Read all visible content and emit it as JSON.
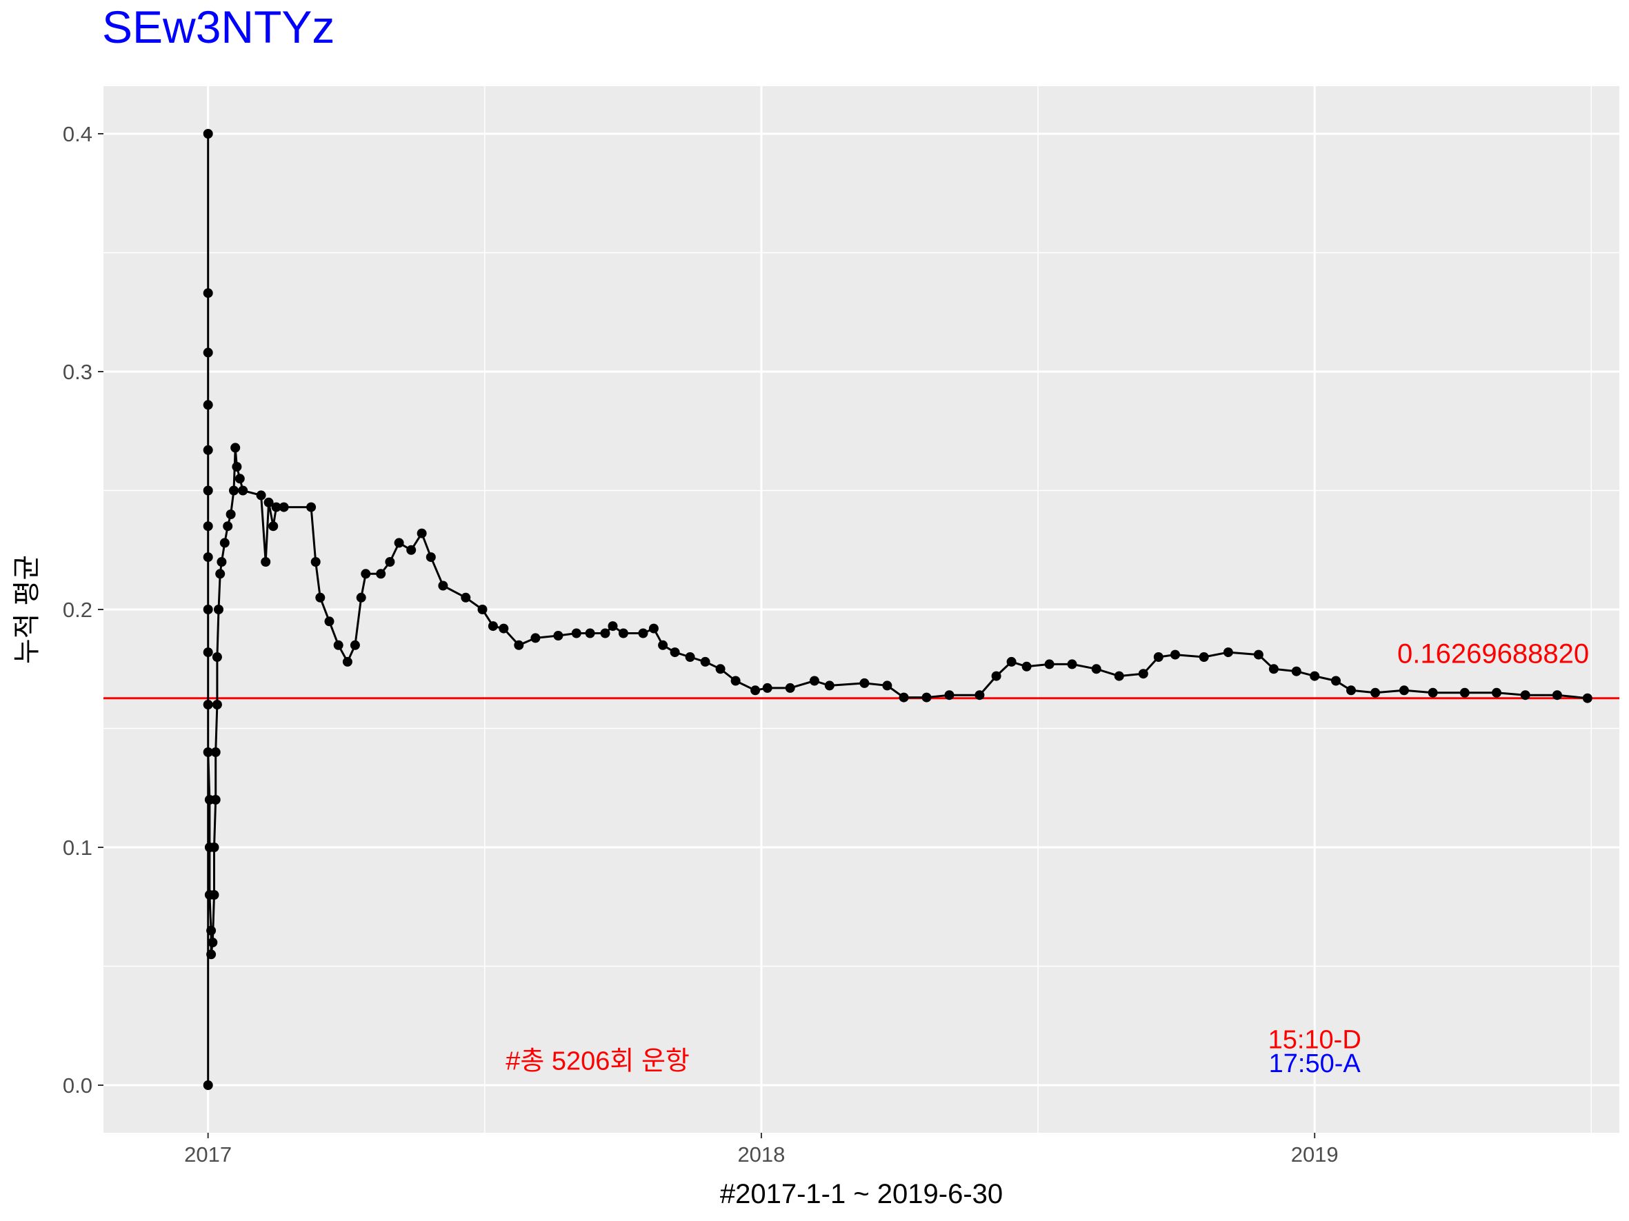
{
  "chart_data": {
    "type": "line",
    "title": "SEw3NTYz",
    "title_color": "#0000ff",
    "xlabel": "#2017-1-1 ~ 2019-6-30",
    "ylabel": "누적 평균",
    "xlim": [
      "2016-10-24",
      "2019-07-21"
    ],
    "ylim": [
      -0.02,
      0.42
    ],
    "x_ticks": [
      {
        "date": "2017-01-01",
        "label": "2017"
      },
      {
        "date": "2018-01-01",
        "label": "2018"
      },
      {
        "date": "2019-01-01",
        "label": "2019"
      }
    ],
    "y_ticks": [
      {
        "value": 0.0,
        "label": "0.0"
      },
      {
        "value": 0.1,
        "label": "0.1"
      },
      {
        "value": 0.2,
        "label": "0.2"
      },
      {
        "value": 0.3,
        "label": "0.3"
      },
      {
        "value": 0.4,
        "label": "0.4"
      }
    ],
    "grid": true,
    "background": "#ebebeb",
    "series": [
      {
        "color": "#000000",
        "points": [
          [
            "2017-01-01",
            0.0
          ],
          [
            "2017-01-01",
            0.4
          ],
          [
            "2017-01-01",
            0.333
          ],
          [
            "2017-01-01",
            0.308
          ],
          [
            "2017-01-01",
            0.286
          ],
          [
            "2017-01-01",
            0.267
          ],
          [
            "2017-01-01",
            0.25
          ],
          [
            "2017-01-01",
            0.235
          ],
          [
            "2017-01-01",
            0.222
          ],
          [
            "2017-01-01",
            0.2
          ],
          [
            "2017-01-01",
            0.182
          ],
          [
            "2017-01-01",
            0.16
          ],
          [
            "2017-01-01",
            0.14
          ],
          [
            "2017-01-02",
            0.12
          ],
          [
            "2017-01-02",
            0.1
          ],
          [
            "2017-01-02",
            0.08
          ],
          [
            "2017-01-03",
            0.065
          ],
          [
            "2017-01-03",
            0.055
          ],
          [
            "2017-01-04",
            0.06
          ],
          [
            "2017-01-05",
            0.08
          ],
          [
            "2017-01-05",
            0.1
          ],
          [
            "2017-01-06",
            0.12
          ],
          [
            "2017-01-06",
            0.14
          ],
          [
            "2017-01-07",
            0.16
          ],
          [
            "2017-01-07",
            0.18
          ],
          [
            "2017-01-08",
            0.2
          ],
          [
            "2017-01-09",
            0.215
          ],
          [
            "2017-01-10",
            0.22
          ],
          [
            "2017-01-12",
            0.228
          ],
          [
            "2017-01-14",
            0.235
          ],
          [
            "2017-01-16",
            0.24
          ],
          [
            "2017-01-18",
            0.25
          ],
          [
            "2017-01-19",
            0.268
          ],
          [
            "2017-01-20",
            0.26
          ],
          [
            "2017-01-22",
            0.255
          ],
          [
            "2017-01-24",
            0.25
          ],
          [
            "2017-02-05",
            0.248
          ],
          [
            "2017-02-08",
            0.22
          ],
          [
            "2017-02-10",
            0.245
          ],
          [
            "2017-02-13",
            0.235
          ],
          [
            "2017-02-15",
            0.243
          ],
          [
            "2017-02-20",
            0.243
          ],
          [
            "2017-03-10",
            0.243
          ],
          [
            "2017-03-13",
            0.22
          ],
          [
            "2017-03-16",
            0.205
          ],
          [
            "2017-03-22",
            0.195
          ],
          [
            "2017-03-28",
            0.185
          ],
          [
            "2017-04-03",
            0.178
          ],
          [
            "2017-04-08",
            0.185
          ],
          [
            "2017-04-12",
            0.205
          ],
          [
            "2017-04-15",
            0.215
          ],
          [
            "2017-04-25",
            0.215
          ],
          [
            "2017-05-01",
            0.22
          ],
          [
            "2017-05-07",
            0.228
          ],
          [
            "2017-05-15",
            0.225
          ],
          [
            "2017-05-22",
            0.232
          ],
          [
            "2017-05-28",
            0.222
          ],
          [
            "2017-06-05",
            0.21
          ],
          [
            "2017-06-20",
            0.205
          ],
          [
            "2017-07-01",
            0.2
          ],
          [
            "2017-07-08",
            0.193
          ],
          [
            "2017-07-15",
            0.192
          ],
          [
            "2017-07-25",
            0.185
          ],
          [
            "2017-08-05",
            0.188
          ],
          [
            "2017-08-20",
            0.189
          ],
          [
            "2017-09-01",
            0.19
          ],
          [
            "2017-09-10",
            0.19
          ],
          [
            "2017-09-20",
            0.19
          ],
          [
            "2017-09-25",
            0.193
          ],
          [
            "2017-10-02",
            0.19
          ],
          [
            "2017-10-15",
            0.19
          ],
          [
            "2017-10-22",
            0.192
          ],
          [
            "2017-10-28",
            0.185
          ],
          [
            "2017-11-05",
            0.182
          ],
          [
            "2017-11-15",
            0.18
          ],
          [
            "2017-11-25",
            0.178
          ],
          [
            "2017-12-05",
            0.175
          ],
          [
            "2017-12-15",
            0.17
          ],
          [
            "2017-12-28",
            0.166
          ],
          [
            "2018-01-05",
            0.167
          ],
          [
            "2018-01-20",
            0.167
          ],
          [
            "2018-02-05",
            0.17
          ],
          [
            "2018-02-15",
            0.168
          ],
          [
            "2018-03-10",
            0.169
          ],
          [
            "2018-03-25",
            0.168
          ],
          [
            "2018-04-05",
            0.163
          ],
          [
            "2018-04-20",
            0.163
          ],
          [
            "2018-05-05",
            0.164
          ],
          [
            "2018-05-25",
            0.164
          ],
          [
            "2018-06-05",
            0.172
          ],
          [
            "2018-06-15",
            0.178
          ],
          [
            "2018-06-25",
            0.176
          ],
          [
            "2018-07-10",
            0.177
          ],
          [
            "2018-07-25",
            0.177
          ],
          [
            "2018-08-10",
            0.175
          ],
          [
            "2018-08-25",
            0.172
          ],
          [
            "2018-09-10",
            0.173
          ],
          [
            "2018-09-20",
            0.18
          ],
          [
            "2018-10-01",
            0.181
          ],
          [
            "2018-10-20",
            0.18
          ],
          [
            "2018-11-05",
            0.182
          ],
          [
            "2018-11-25",
            0.181
          ],
          [
            "2018-12-05",
            0.175
          ],
          [
            "2018-12-20",
            0.174
          ],
          [
            "2019-01-01",
            0.172
          ],
          [
            "2019-01-15",
            0.17
          ],
          [
            "2019-01-25",
            0.166
          ],
          [
            "2019-02-10",
            0.165
          ],
          [
            "2019-03-01",
            0.166
          ],
          [
            "2019-03-20",
            0.165
          ],
          [
            "2019-04-10",
            0.165
          ],
          [
            "2019-05-01",
            0.165
          ],
          [
            "2019-05-20",
            0.164
          ],
          [
            "2019-06-10",
            0.164
          ],
          [
            "2019-06-30",
            0.1627
          ]
        ]
      }
    ],
    "hline": {
      "value": 0.1626968882,
      "color": "#ff0000",
      "label": "0.16269688820"
    },
    "annotations": [
      {
        "text": "#총 5206회 운항",
        "color": "#ff0000",
        "x": "2017-09-15",
        "y": 0.01
      },
      {
        "text": "15:10-D",
        "color": "#ff0000",
        "x": "2019-01-01",
        "y": 0.019
      },
      {
        "text": "17:50-A",
        "color": "#0000ff",
        "x": "2019-01-01",
        "y": 0.009
      }
    ]
  }
}
